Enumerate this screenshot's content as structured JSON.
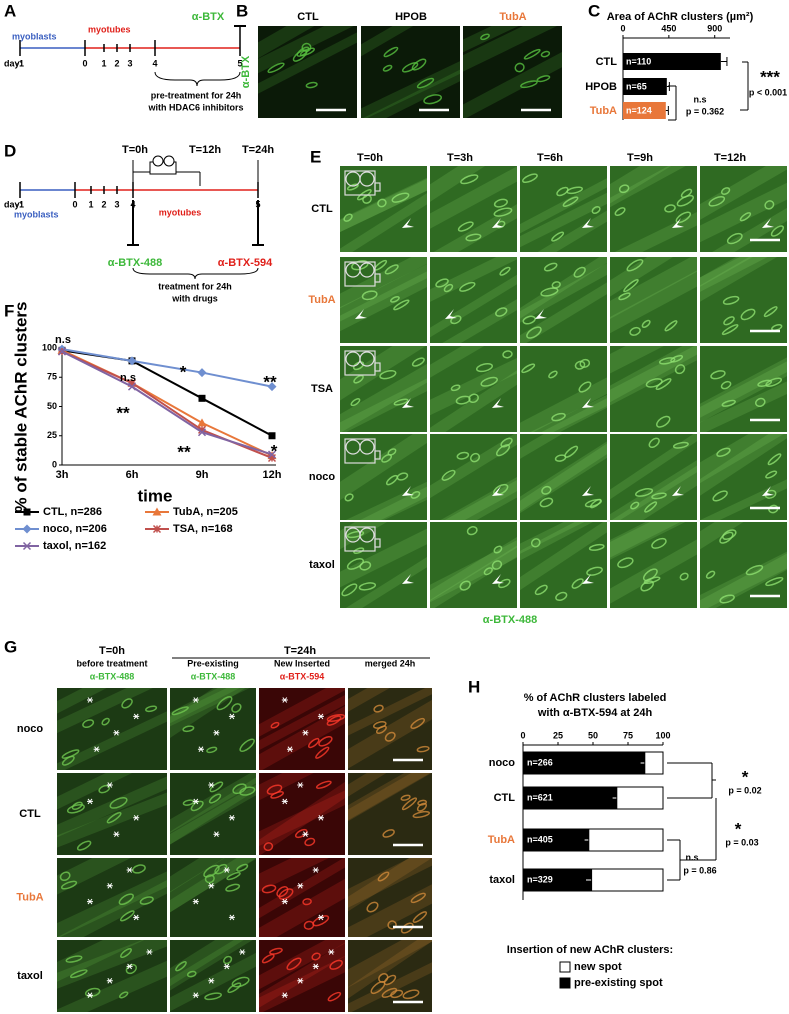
{
  "panel_labels": [
    "A",
    "B",
    "C",
    "D",
    "E",
    "F",
    "G",
    "H"
  ],
  "panel_a": {
    "day_label": "day:",
    "days": [
      "-1",
      "0",
      "1",
      "2",
      "3",
      "4",
      "5"
    ],
    "myoblasts": "myoblasts",
    "myotubes": "myotubes",
    "marker": "α-BTX",
    "note": [
      "pre-treatment for 24h",
      "with HDAC6 inhibitors"
    ]
  },
  "panel_b": {
    "stain": "α-BTX",
    "columns": [
      "CTL",
      "HPOB",
      "TubA"
    ]
  },
  "panel_d": {
    "day_label": "day:",
    "days": [
      "-1",
      "0",
      "1",
      "2",
      "3",
      "4",
      "5"
    ],
    "times": [
      "T=0h",
      "T=12h",
      "T=24h"
    ],
    "myoblasts": "myoblasts",
    "myotubes": "myotubes",
    "markers": [
      "α-BTX-488",
      "α-BTX-594"
    ],
    "note": [
      "treatment for 24h",
      "with drugs"
    ]
  },
  "panel_e": {
    "columns": [
      "T=0h",
      "T=3h",
      "T=6h",
      "T=9h",
      "T=12h"
    ],
    "rows": [
      "CTL",
      "TubA",
      "TSA",
      "noco",
      "taxol"
    ],
    "stain": "α-BTX-488"
  },
  "panel_g": {
    "timepoints": [
      "T=0h",
      "T=24h"
    ],
    "columns": [
      {
        "title": "before treatment",
        "stain": "α-BTX-488"
      },
      {
        "title": "Pre-existing",
        "stain": "α-BTX-488"
      },
      {
        "title": "New Inserted",
        "stain": "α-BTX-594"
      },
      {
        "title": "merged 24h"
      }
    ],
    "rows": [
      "noco",
      "CTL",
      "TubA",
      "taxol"
    ]
  },
  "chart_data": [
    {
      "type": "bar",
      "orientation": "horizontal",
      "title": "Area of AChR clusters  (µm²)",
      "categories": [
        "CTL",
        "HPOB",
        "TubA"
      ],
      "category_colors": [
        "#000000",
        "#000000",
        "#e8773a"
      ],
      "colors": [
        "#000000",
        "#000000",
        "#e8773a"
      ],
      "values": [
        960,
        430,
        420
      ],
      "errors": [
        60,
        25,
        25
      ],
      "n_labels": [
        "n=110",
        "n=65",
        "n=124"
      ],
      "xlim": [
        0,
        1050
      ],
      "xticks": [
        0,
        450,
        900
      ],
      "annotations": [
        "n.s",
        "p = 0.362",
        "***",
        "p < 0.001"
      ]
    },
    {
      "type": "line",
      "ylabel": "% of stable AChR clusters",
      "xlabel": "time",
      "categories": [
        "3h",
        "6h",
        "9h",
        "12h"
      ],
      "ylim": [
        0,
        100
      ],
      "yticks": [
        0,
        25,
        50,
        75,
        100
      ],
      "series": [
        {
          "name": "CTL, n=286",
          "color": "#000000",
          "marker": "square",
          "values": [
            98,
            89,
            57,
            25
          ]
        },
        {
          "name": "TubA, n=205",
          "color": "#e8773a",
          "marker": "triangle",
          "values": [
            98,
            70,
            36,
            8
          ]
        },
        {
          "name": "noco, n=206",
          "color": "#6f8fd0",
          "marker": "diamond",
          "values": [
            99,
            89,
            79,
            67
          ]
        },
        {
          "name": "TSA, n=168",
          "color": "#c0504d",
          "marker": "asterisk",
          "values": [
            97,
            70,
            30,
            6
          ]
        },
        {
          "name": "taxol, n=162",
          "color": "#8064a2",
          "marker": "x",
          "values": [
            97,
            67,
            28,
            9
          ]
        }
      ],
      "annotations": [
        "n.s",
        "n.s",
        "*",
        "**",
        "**",
        "**",
        "*"
      ]
    },
    {
      "type": "bar",
      "orientation": "horizontal",
      "stacked": true,
      "title": [
        "% of AChR clusters labeled",
        "with α-BTX-594 at 24h"
      ],
      "categories": [
        "noco",
        "CTL",
        "TubA",
        "taxol"
      ],
      "category_colors": [
        "#000000",
        "#000000",
        "#e8773a",
        "#000000"
      ],
      "n_labels": [
        "n=266",
        "n=621",
        "n=405",
        "n=329"
      ],
      "series": [
        {
          "name": "pre-existing spot",
          "color": "#000000",
          "values": [
            87,
            67,
            47,
            49
          ],
          "errors": [
            3,
            3,
            3,
            4
          ]
        },
        {
          "name": "new spot",
          "color": "#ffffff",
          "values": [
            13,
            33,
            53,
            51
          ]
        }
      ],
      "xlim": [
        0,
        100
      ],
      "xticks": [
        0,
        25,
        50,
        75,
        100
      ],
      "legend_title": "Insertion of new AChR clusters:",
      "annotations": [
        "*",
        "p = 0.02",
        "*",
        "p = 0.03",
        "n.s",
        "p = 0.86"
      ]
    }
  ]
}
